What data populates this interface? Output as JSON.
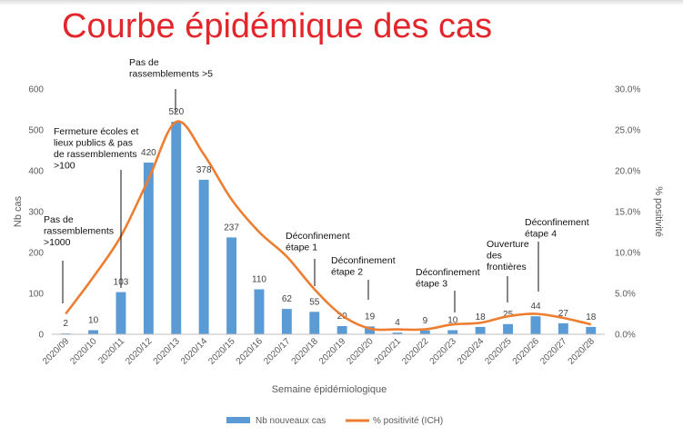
{
  "page": {
    "title": "Courbe épidémique des cas"
  },
  "chart_data": {
    "type": "bar",
    "categories": [
      "2020/09",
      "2020/10",
      "2020/11",
      "2020/12",
      "2020/13",
      "2020/14",
      "2020/15",
      "2020/16",
      "2020/17",
      "2020/18",
      "2020/19",
      "2020/20",
      "2020/21",
      "2020/22",
      "2020/23",
      "2020/24",
      "2020/25",
      "2020/26",
      "2020/27",
      "2020/28"
    ],
    "series": [
      {
        "name": "Nb nouveaux cas",
        "type": "bar",
        "axis": "left",
        "color": "#5b9bd5",
        "values": [
          2,
          10,
          103,
          420,
          520,
          378,
          237,
          110,
          62,
          55,
          20,
          19,
          4,
          9,
          10,
          18,
          25,
          44,
          27,
          18
        ]
      },
      {
        "name": "% positivité (ICH)",
        "type": "line",
        "axis": "right",
        "color": "#ed7d31",
        "values": [
          2.5,
          7.0,
          12.0,
          19.0,
          26.0,
          22.0,
          16.5,
          12.5,
          9.5,
          5.5,
          2.3,
          0.7,
          0.6,
          0.6,
          1.2,
          1.4,
          2.2,
          2.5,
          2.0,
          1.2
        ]
      }
    ],
    "xlabel": "Semaine épidémiologique",
    "ylabel": "Nb cas",
    "y2label": "% positivité",
    "ylim": [
      0,
      600
    ],
    "yticks": [
      "0",
      "100",
      "200",
      "300",
      "400",
      "500",
      "600"
    ],
    "y2lim": [
      0,
      30
    ],
    "y2ticks": [
      "0.0%",
      "5.0%",
      "10.0%",
      "15.0%",
      "20.0%",
      "25.0%",
      "30.0%"
    ],
    "grid": false,
    "legend_position": "bottom",
    "annotations": [
      {
        "index": 0,
        "lines": [
          "Pas de",
          "rassemblements",
          ">1000"
        ]
      },
      {
        "index": 2,
        "lines": [
          "Fermeture écoles et",
          "lieux publics & pas",
          "de rassemblements",
          ">100"
        ]
      },
      {
        "index": 4,
        "lines": [
          "Pas de",
          "rassemblements >5"
        ]
      },
      {
        "index": 9,
        "lines": [
          "Déconfinement",
          "étape 1"
        ]
      },
      {
        "index": 11,
        "lines": [
          "Déconfinement",
          "étape 2"
        ]
      },
      {
        "index": 14,
        "lines": [
          "Déconfinement",
          "étape 3"
        ]
      },
      {
        "index": 16,
        "lines": [
          "Ouverture",
          "des",
          "frontières"
        ]
      },
      {
        "index": 17,
        "lines": [
          "Déconfinement",
          "étape 4"
        ]
      }
    ]
  }
}
